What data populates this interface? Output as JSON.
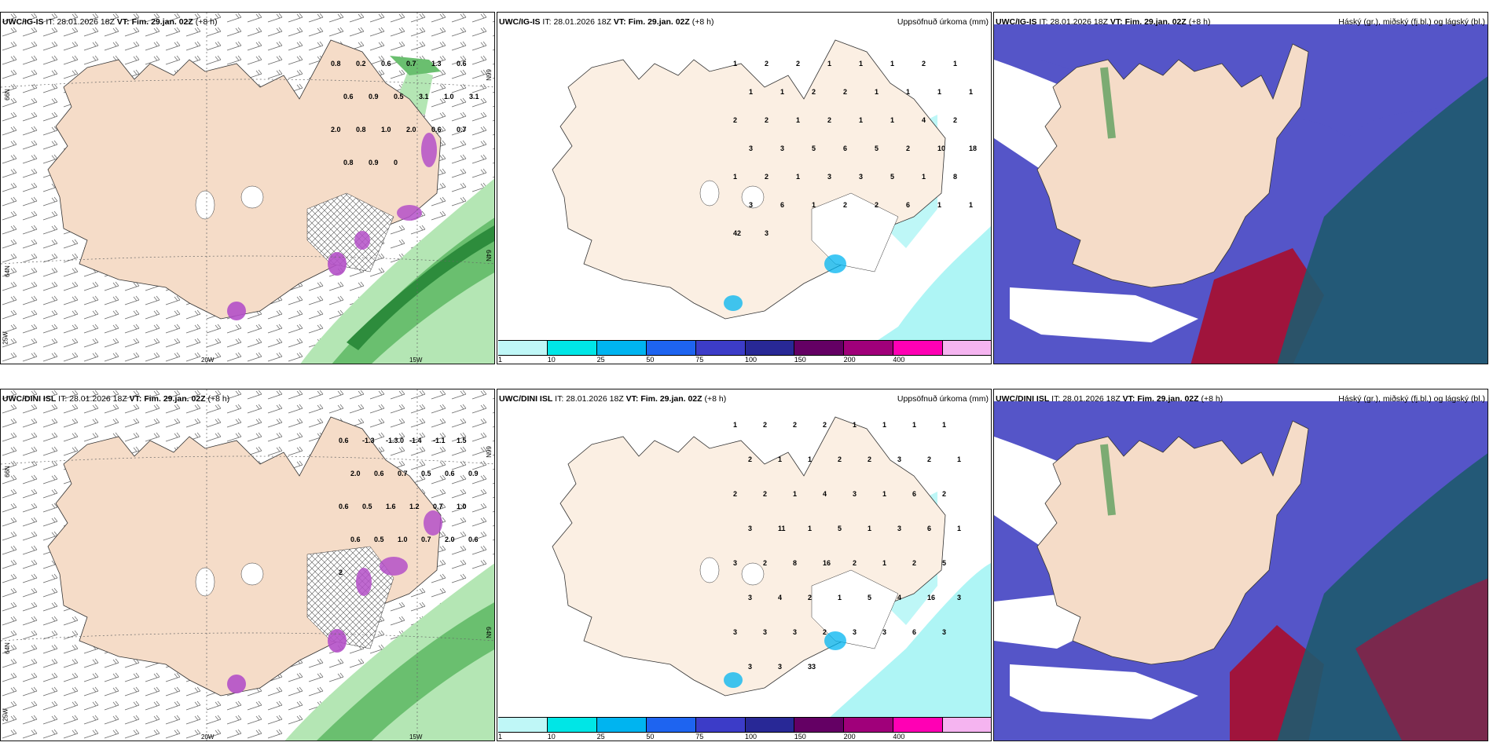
{
  "panels": [
    {
      "id": "p1",
      "model": "UWC/IG-IS",
      "it_label": "IT:",
      "it_value": "28.01.2026 18Z",
      "vt_label": "VT:",
      "vt_value": "Fim. 29.jan. 02Z",
      "lead": "(+8 h)",
      "right_title": "",
      "labels": [
        "0.8",
        "0.2",
        "0.6",
        "0.7",
        "1.3",
        "0.6",
        "0.6",
        "0.9",
        "0.5",
        "3.1",
        "1.0",
        "3.1",
        "2.0",
        "0.8",
        "1.0",
        "2.0",
        "0.6",
        "0.7",
        "0.8",
        "0.9",
        "0"
      ],
      "axis": {
        "lat66": "66N",
        "lat64": "64N",
        "lon25": "25W",
        "lon20": "20W",
        "lon15": "15W",
        "lat66r": "66N",
        "lat64r": "64N"
      }
    },
    {
      "id": "p2",
      "model": "UWC/IG-IS",
      "it_label": "IT:",
      "it_value": "28.01.2026 18Z",
      "vt_label": "VT:",
      "vt_value": "Fim. 29.jan. 02Z",
      "lead": "(+8 h)",
      "right_title": "Uppsöfnuð úrkoma (mm)",
      "labels": [
        "1",
        "2",
        "2",
        "1",
        "1",
        "1",
        "2",
        "1",
        "1",
        "1",
        "2",
        "2",
        "1",
        "1",
        "1",
        "1",
        "2",
        "2",
        "1",
        "2",
        "1",
        "1",
        "4",
        "2",
        "3",
        "3",
        "5",
        "6",
        "5",
        "2",
        "10",
        "18",
        "1",
        "2",
        "1",
        "3",
        "3",
        "5",
        "1",
        "8",
        "3",
        "6",
        "1",
        "2",
        "2",
        "6",
        "1",
        "1",
        "42",
        "3"
      ],
      "legend_ticks": [
        "1",
        "10",
        "25",
        "50",
        "75",
        "100",
        "150",
        "200",
        "400"
      ]
    },
    {
      "id": "p3",
      "model": "UWC/IG-IS",
      "it_label": "IT:",
      "it_value": "28.01.2026 18Z",
      "vt_label": "VT:",
      "vt_value": "Fim. 29.jan. 02Z",
      "lead": "(+8 h)",
      "right_title": "Háský (gr.), miðský (fj.bl.) og lágský (bl.)"
    },
    {
      "id": "p4",
      "model": "UWC/DINI ISL",
      "it_label": "IT:",
      "it_value": "28.01.2026 18Z",
      "vt_label": "VT:",
      "vt_value": "Fim. 29.jan. 02Z",
      "lead": "(+8 h)",
      "right_title": "",
      "labels": [
        "0.6",
        "-1.3",
        "-1.3.0",
        "-1.4",
        "-1.1",
        "1.5",
        "2.0",
        "0.6",
        "0.7",
        "0.5",
        "0.6",
        "0.9",
        "0.6",
        "0.5",
        "1.6",
        "1.2",
        "0.7",
        "1.0",
        "0.6",
        "0.5",
        "1.0",
        "0.7",
        "2.0",
        "0.6",
        "2"
      ],
      "axis": {
        "lat66": "66N",
        "lat64": "64N",
        "lon25": "25W",
        "lon20": "20W",
        "lon15": "15W",
        "lat66r": "66N",
        "lat64r": "64N"
      }
    },
    {
      "id": "p5",
      "model": "UWC/DINI ISL",
      "it_label": "IT:",
      "it_value": "28.01.2026 18Z",
      "vt_label": "VT:",
      "vt_value": "Fim. 29.jan. 02Z",
      "lead": "(+8 h)",
      "right_title": "Uppsöfnuð úrkoma (mm)",
      "labels": [
        "1",
        "2",
        "2",
        "2",
        "1",
        "1",
        "1",
        "1",
        "2",
        "1",
        "1",
        "2",
        "2",
        "3",
        "2",
        "1",
        "2",
        "2",
        "1",
        "4",
        "3",
        "1",
        "6",
        "2",
        "3",
        "11",
        "1",
        "5",
        "1",
        "3",
        "6",
        "1",
        "3",
        "2",
        "8",
        "16",
        "2",
        "1",
        "2",
        "5",
        "3",
        "4",
        "2",
        "1",
        "5",
        "4",
        "16",
        "3",
        "3",
        "3",
        "3",
        "2",
        "3",
        "3",
        "6",
        "3",
        "3",
        "3",
        "33"
      ],
      "legend_ticks": [
        "1",
        "10",
        "25",
        "50",
        "75",
        "100",
        "150",
        "200",
        "400"
      ]
    },
    {
      "id": "p6",
      "model": "UWC/DINI ISL",
      "it_label": "IT:",
      "it_value": "28.01.2026 18Z",
      "vt_label": "VT:",
      "vt_value": "Fim. 29.jan. 02Z",
      "lead": "(+8 h)",
      "right_title": "Háský (gr.), miðský (fj.bl.) og lágský (bl.)"
    }
  ],
  "legend_colors": [
    "#bff7f7",
    "#00e6e6",
    "#00b4f0",
    "#1e64f0",
    "#3c3cc8",
    "#282896",
    "#640064",
    "#a0007a",
    "#ff00b4",
    "#f5b4f0"
  ],
  "colors": {
    "land": "#f5dcc8",
    "land_p2": "#fbefe3",
    "precip_green": "#2d8c3c",
    "precip_light": "#b4e6b4",
    "snow": "#b450c8",
    "cyan": "#aef5f5",
    "cloud_blue": "#5555c8",
    "cloud_dark": "#1e5a6e",
    "cloud_red": "#a0143c"
  }
}
